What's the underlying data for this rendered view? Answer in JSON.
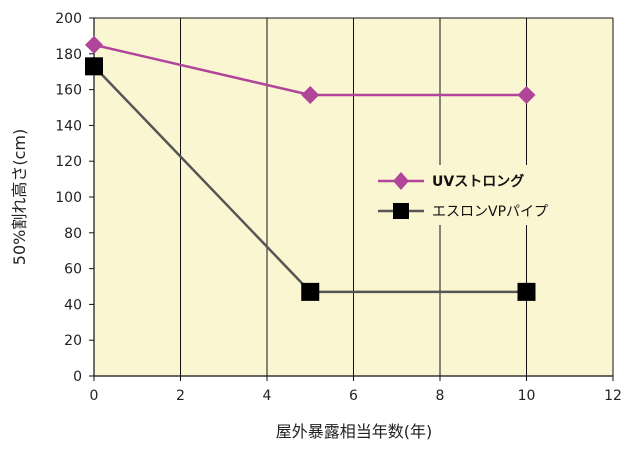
{
  "chart_data": {
    "type": "line",
    "xlabel": "屋外暴露相当年数(年)",
    "ylabel": "50%割れ高さ(cm)",
    "xlim": [
      0,
      12
    ],
    "ylim": [
      0,
      200
    ],
    "xticks": [
      0,
      2,
      4,
      6,
      8,
      10,
      12
    ],
    "yticks": [
      0,
      20,
      40,
      60,
      80,
      100,
      120,
      140,
      160,
      180,
      200
    ],
    "grid": "vertical lines at x ticks",
    "plot_background": "#fbf6d2",
    "legend_position": "right-middle",
    "series": [
      {
        "name": "UVストロング",
        "color": "#b0459a",
        "marker": "diamond",
        "bold_label": true,
        "x": [
          0,
          5,
          10
        ],
        "y": [
          185,
          157,
          157
        ]
      },
      {
        "name": "エスロンVPパイプ",
        "color": "#555555",
        "marker_color": "#000000",
        "marker": "square",
        "bold_label": false,
        "x": [
          0,
          5,
          10
        ],
        "y": [
          173,
          47,
          47
        ]
      }
    ]
  }
}
